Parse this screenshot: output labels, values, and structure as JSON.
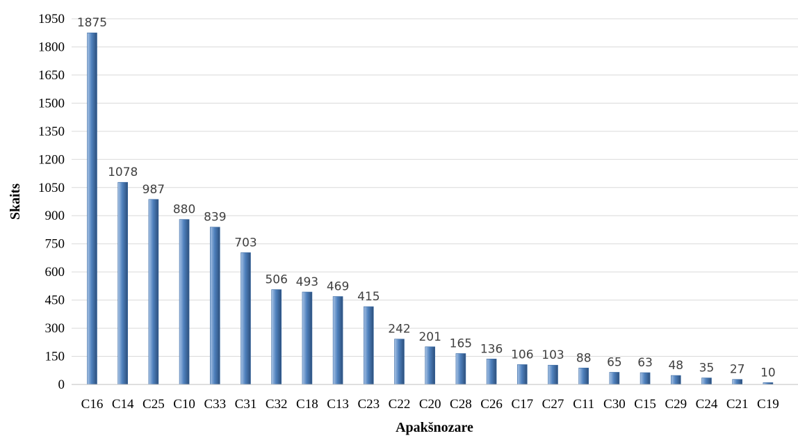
{
  "chart_data": {
    "type": "bar",
    "title": "",
    "xlabel": "Apakšnozare",
    "ylabel": "Skaits",
    "ylim": [
      0,
      1950
    ],
    "yticks": [
      0,
      150,
      300,
      450,
      600,
      750,
      900,
      1050,
      1200,
      1350,
      1500,
      1650,
      1800,
      1950
    ],
    "grid": "horizontal",
    "legend": "none",
    "bar_color": "#4f81bd",
    "bar_color_light": "#a9c4e6",
    "bar_color_dark": "#2c4f7c",
    "categories": [
      "C16",
      "C14",
      "C25",
      "C10",
      "C33",
      "C31",
      "C32",
      "C18",
      "C13",
      "C23",
      "C22",
      "C20",
      "C28",
      "C26",
      "C17",
      "C27",
      "C11",
      "C30",
      "C15",
      "C29",
      "C24",
      "C21",
      "C19"
    ],
    "values": [
      1875,
      1078,
      987,
      880,
      839,
      703,
      506,
      493,
      469,
      415,
      242,
      201,
      165,
      136,
      106,
      103,
      88,
      65,
      63,
      48,
      35,
      27,
      10
    ]
  }
}
